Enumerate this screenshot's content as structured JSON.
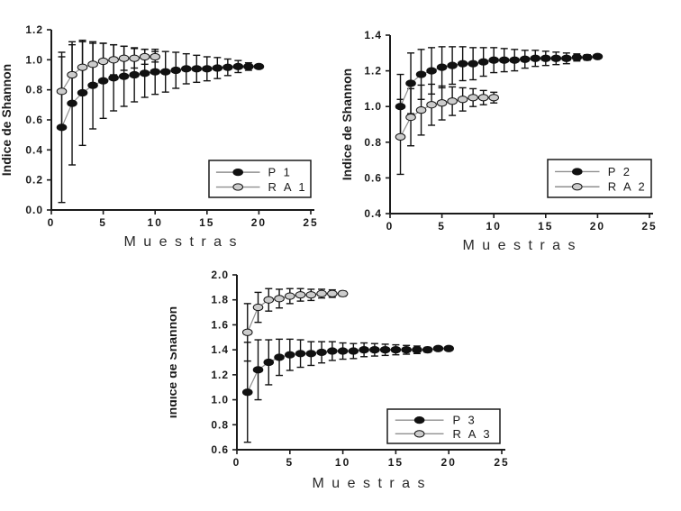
{
  "figure": {
    "background": "#ffffff"
  },
  "colors": {
    "axis": "#1a1a1a",
    "tick_text": "#1a1a1a",
    "error_bar": "#111111",
    "connect_line": "#8f8f8f",
    "p_marker_fill": "#111111",
    "ra_marker_fill": "#cccccc",
    "marker_stroke": "#111111",
    "legend_border": "#1a1a1a",
    "legend_bg": "#ffffff"
  },
  "chart_data": [
    {
      "type": "line",
      "name": "panel-1",
      "title": "",
      "ylabel": "Indice de Shannon",
      "xlabel": "M u e s t r a s",
      "xlim": [
        0,
        25
      ],
      "ylim": [
        0.0,
        1.2
      ],
      "xticks": [
        0,
        5,
        10,
        15,
        20,
        25
      ],
      "xtick_labels": [
        "0",
        "5",
        "10",
        "15",
        "20",
        "25"
      ],
      "yticks": [
        0.0,
        0.2,
        0.4,
        0.6,
        0.8,
        1.0,
        1.2
      ],
      "ytick_labels": [
        "0.0",
        "0.2",
        "0.4",
        "0.6",
        "0.8",
        "1.0",
        "1.2"
      ],
      "grid": false,
      "legend_position": "lower-right",
      "legend_entries": [
        "P 1",
        "R A 1"
      ],
      "series": [
        {
          "name": "P 1",
          "marker": "filled-ellipse",
          "x": [
            1,
            2,
            3,
            4,
            5,
            6,
            7,
            8,
            9,
            10,
            11,
            12,
            13,
            14,
            15,
            16,
            17,
            18,
            19,
            20
          ],
          "y": [
            0.55,
            0.71,
            0.78,
            0.83,
            0.86,
            0.88,
            0.89,
            0.9,
            0.91,
            0.92,
            0.92,
            0.93,
            0.94,
            0.94,
            0.94,
            0.945,
            0.95,
            0.955,
            0.955,
            0.955
          ],
          "yerr": [
            0.5,
            0.41,
            0.35,
            0.29,
            0.25,
            0.22,
            0.2,
            0.18,
            0.16,
            0.15,
            0.135,
            0.12,
            0.1,
            0.09,
            0.08,
            0.07,
            0.055,
            0.04,
            0.025,
            0.01
          ]
        },
        {
          "name": "R A 1",
          "marker": "open-ellipse",
          "x": [
            1,
            2,
            3,
            4,
            5,
            6,
            7,
            8,
            9,
            10
          ],
          "y": [
            0.79,
            0.9,
            0.95,
            0.97,
            0.99,
            1.0,
            1.01,
            1.01,
            1.02,
            1.02
          ],
          "yerr": [
            0.23,
            0.2,
            0.17,
            0.14,
            0.12,
            0.1,
            0.08,
            0.065,
            0.05,
            0.035
          ]
        }
      ]
    },
    {
      "type": "line",
      "name": "panel-2",
      "title": "",
      "ylabel": "Indice de Shannon",
      "xlabel": "M u e s t r a s",
      "xlim": [
        0,
        25
      ],
      "ylim": [
        0.4,
        1.4
      ],
      "xticks": [
        0,
        5,
        10,
        15,
        20,
        25
      ],
      "xtick_labels": [
        "0",
        "5",
        "10",
        "15",
        "20",
        "25"
      ],
      "yticks": [
        0.4,
        0.6,
        0.8,
        1.0,
        1.2,
        1.4
      ],
      "ytick_labels": [
        "0.4",
        "0.6",
        "0.8",
        "1.0",
        "1.2",
        "1.4"
      ],
      "grid": false,
      "legend_position": "lower-right",
      "legend_entries": [
        "P 2",
        "R A 2"
      ],
      "series": [
        {
          "name": "P 2",
          "marker": "filled-ellipse",
          "x": [
            1,
            2,
            3,
            4,
            5,
            6,
            7,
            8,
            9,
            10,
            11,
            12,
            13,
            14,
            15,
            16,
            17,
            18,
            19,
            20
          ],
          "y": [
            1.0,
            1.13,
            1.18,
            1.2,
            1.22,
            1.23,
            1.24,
            1.24,
            1.25,
            1.26,
            1.26,
            1.26,
            1.265,
            1.27,
            1.27,
            1.27,
            1.27,
            1.275,
            1.275,
            1.28
          ],
          "yerr": [
            0.18,
            0.17,
            0.14,
            0.13,
            0.115,
            0.105,
            0.095,
            0.09,
            0.08,
            0.07,
            0.065,
            0.06,
            0.05,
            0.045,
            0.04,
            0.035,
            0.03,
            0.02,
            0.015,
            0.005
          ]
        },
        {
          "name": "R A 2",
          "marker": "open-ellipse",
          "x": [
            1,
            2,
            3,
            4,
            5,
            6,
            7,
            8,
            9,
            10
          ],
          "y": [
            0.83,
            0.94,
            0.98,
            1.01,
            1.02,
            1.03,
            1.04,
            1.05,
            1.05,
            1.05
          ],
          "yerr": [
            0.21,
            0.16,
            0.14,
            0.115,
            0.095,
            0.08,
            0.065,
            0.05,
            0.04,
            0.03
          ]
        }
      ]
    },
    {
      "type": "line",
      "name": "panel-3",
      "title": "",
      "ylabel": "Indice de Shannon",
      "xlabel": "M u e s t r a s",
      "xlim": [
        0,
        25
      ],
      "ylim": [
        0.6,
        2.0
      ],
      "xticks": [
        0,
        5,
        10,
        15,
        20,
        25
      ],
      "xtick_labels": [
        "0",
        "5",
        "10",
        "15",
        "20",
        "25"
      ],
      "yticks": [
        0.6,
        0.8,
        1.0,
        1.2,
        1.4,
        1.6,
        1.8,
        2.0
      ],
      "ytick_labels": [
        "0.6",
        "0.8",
        "1.0",
        "1.2",
        "1.4",
        "1.6",
        "1.8",
        "2.0"
      ],
      "grid": false,
      "legend_position": "lower-right",
      "legend_entries": [
        "P 3",
        "R A 3"
      ],
      "series": [
        {
          "name": "P 3",
          "marker": "filled-ellipse",
          "x": [
            1,
            2,
            3,
            4,
            5,
            6,
            7,
            8,
            9,
            10,
            11,
            12,
            13,
            14,
            15,
            16,
            17,
            18,
            19,
            20
          ],
          "y": [
            1.06,
            1.24,
            1.3,
            1.34,
            1.36,
            1.37,
            1.37,
            1.38,
            1.39,
            1.39,
            1.39,
            1.4,
            1.4,
            1.4,
            1.4,
            1.4,
            1.4,
            1.4,
            1.41,
            1.41
          ],
          "yerr": [
            0.4,
            0.24,
            0.18,
            0.145,
            0.125,
            0.11,
            0.095,
            0.085,
            0.075,
            0.065,
            0.06,
            0.055,
            0.05,
            0.045,
            0.04,
            0.035,
            0.03,
            0.02,
            0.015,
            0.005
          ]
        },
        {
          "name": "R A 3",
          "marker": "open-ellipse",
          "x": [
            1,
            2,
            3,
            4,
            5,
            6,
            7,
            8,
            9,
            10
          ],
          "y": [
            1.54,
            1.74,
            1.8,
            1.81,
            1.83,
            1.84,
            1.84,
            1.85,
            1.85,
            1.85
          ],
          "yerr": [
            0.23,
            0.12,
            0.09,
            0.075,
            0.06,
            0.05,
            0.045,
            0.035,
            0.03,
            0.02
          ]
        }
      ]
    }
  ]
}
